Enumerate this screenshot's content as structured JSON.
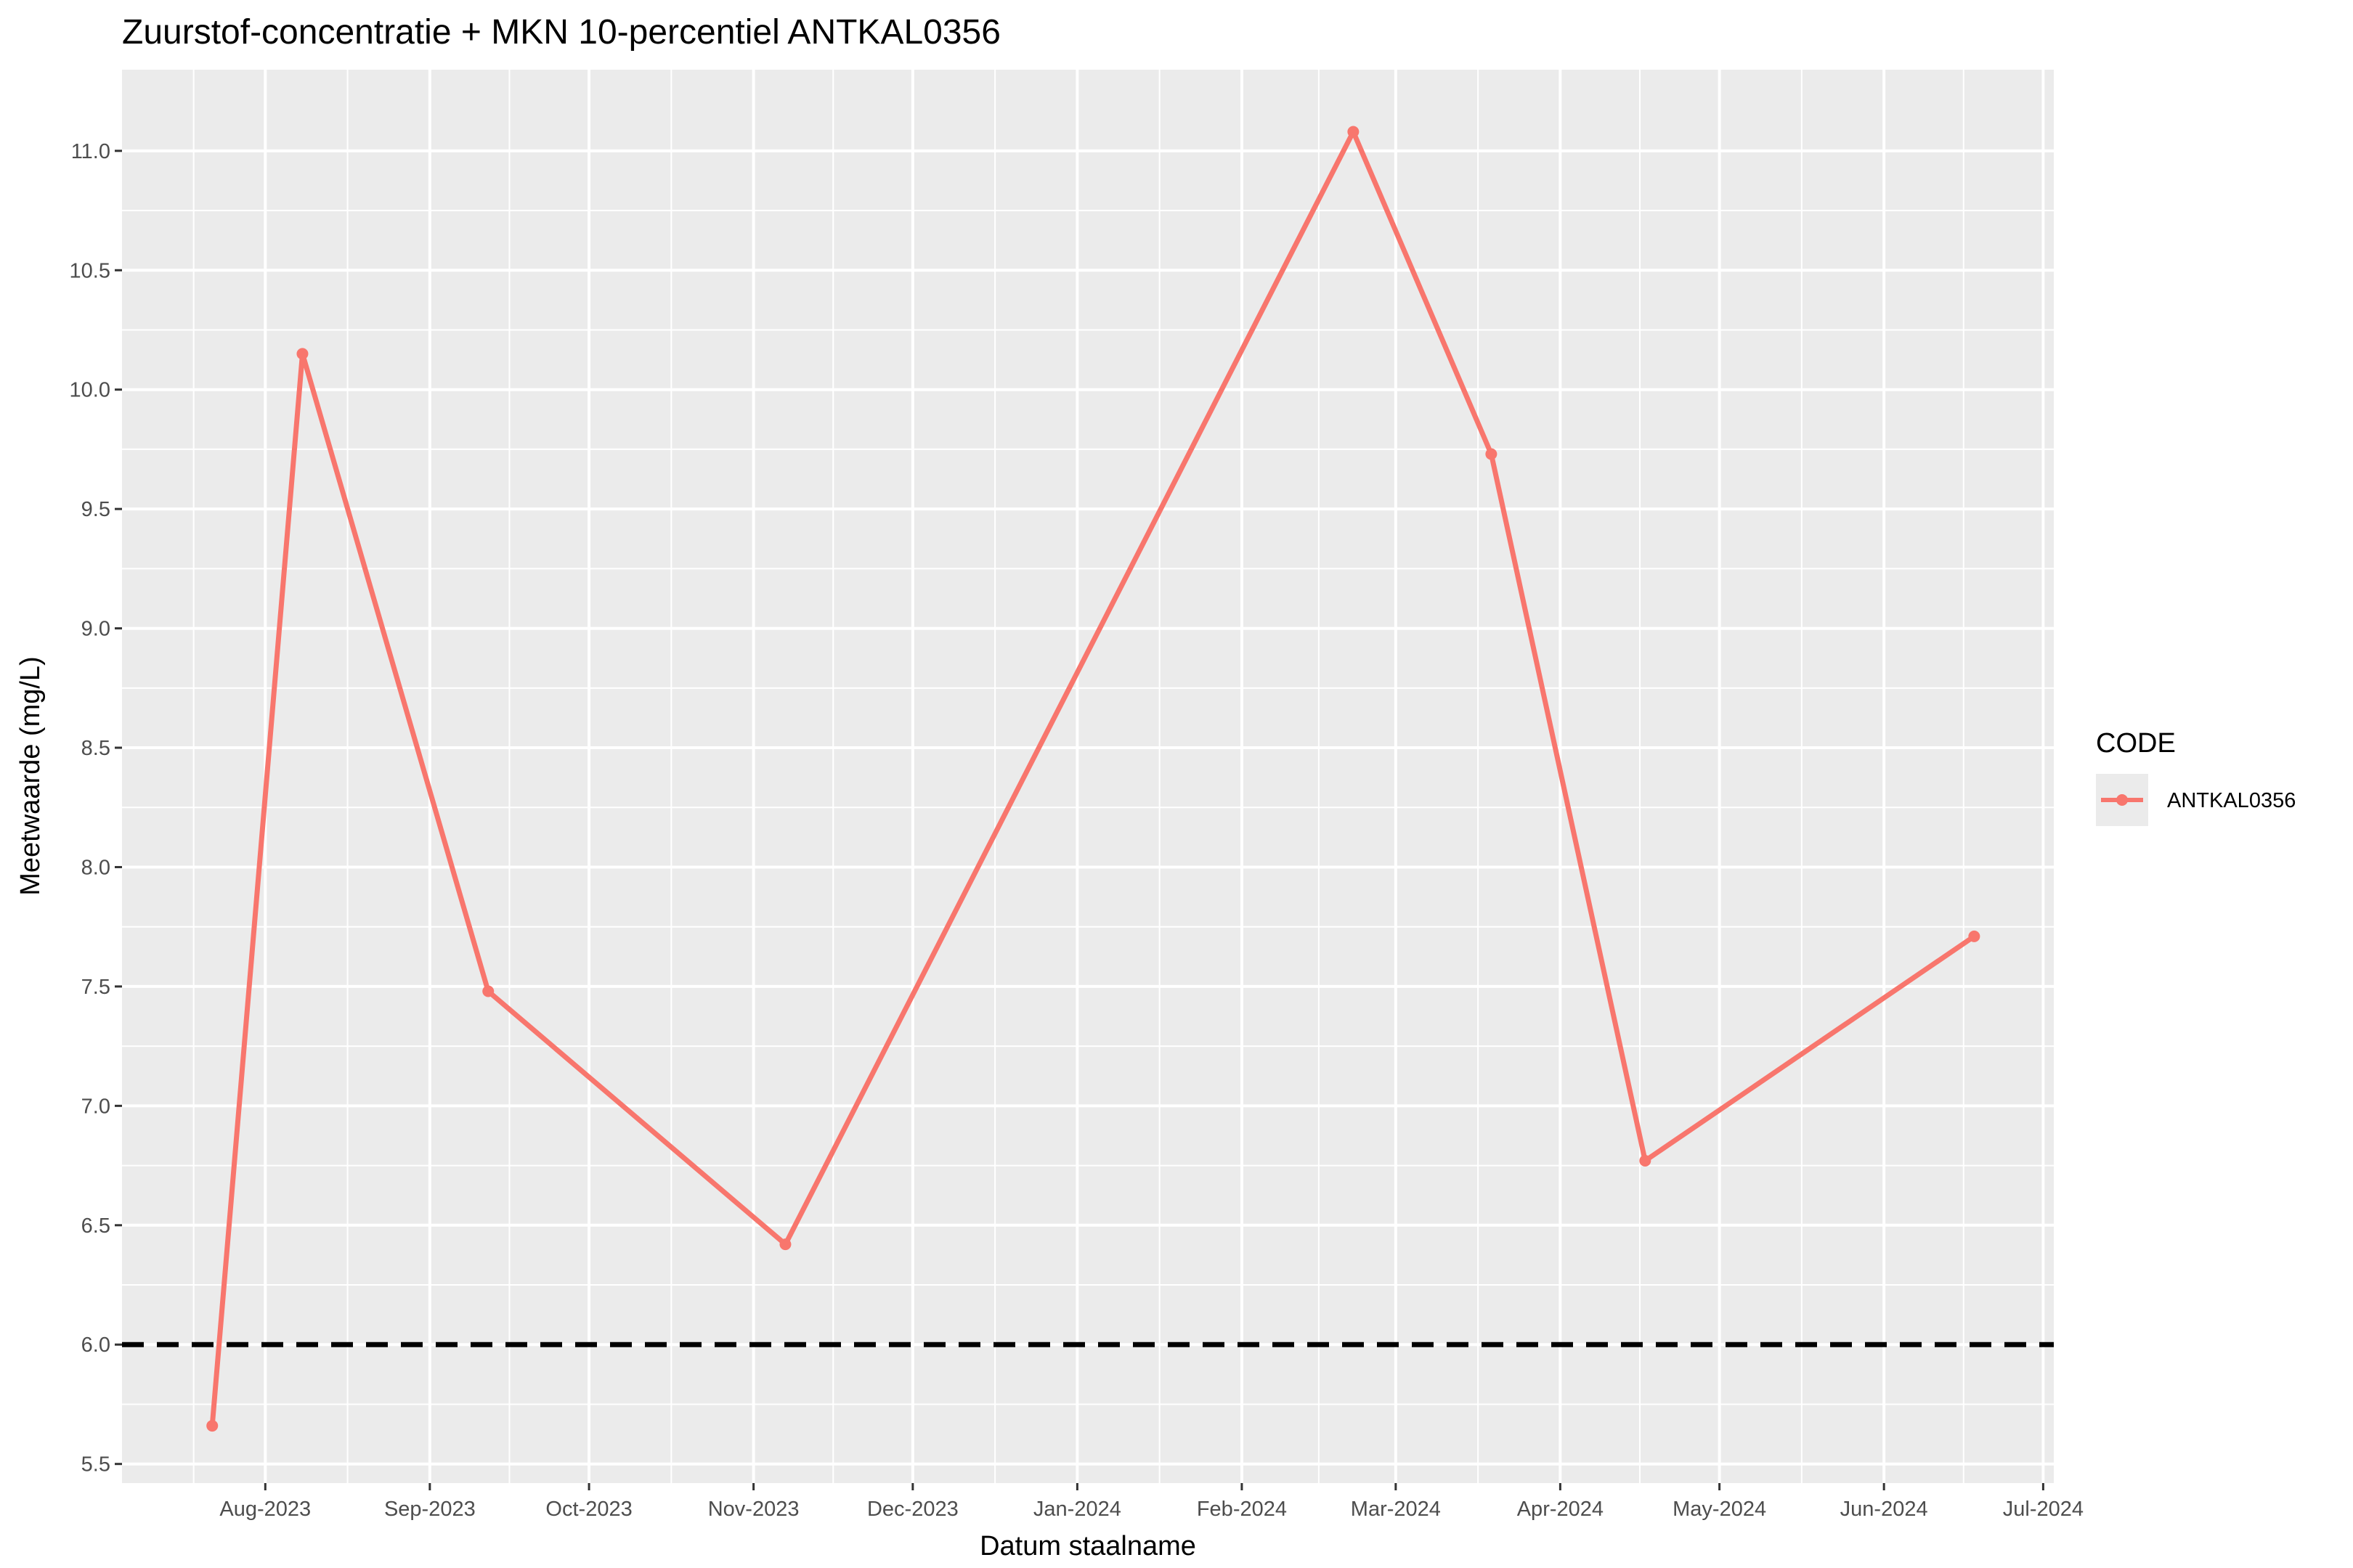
{
  "chart_data": {
    "type": "line",
    "title": "Zuurstof-concentratie + MKN 10-percentiel ANTKAL0356",
    "xlabel": "Datum staalname",
    "ylabel": "Meetwaarde (mg/L)",
    "x_tick_labels": [
      "Aug-2023",
      "Sep-2023",
      "Oct-2023",
      "Nov-2023",
      "Dec-2023",
      "Jan-2024",
      "Feb-2024",
      "Mar-2024",
      "Apr-2024",
      "May-2024",
      "Jun-2024",
      "Jul-2024"
    ],
    "x_ticks": [
      "2023-08-01",
      "2023-09-01",
      "2023-10-01",
      "2023-11-01",
      "2023-12-01",
      "2024-01-01",
      "2024-02-01",
      "2024-03-01",
      "2024-04-01",
      "2024-05-01",
      "2024-06-01",
      "2024-07-01"
    ],
    "xlim": [
      "2023-07-05",
      "2024-07-03"
    ],
    "y_ticks": [
      "5.5",
      "6.0",
      "6.5",
      "7.0",
      "7.5",
      "8.0",
      "8.5",
      "9.0",
      "9.5",
      "10.0",
      "10.5",
      "11.0"
    ],
    "ylim": [
      5.42,
      11.34
    ],
    "grid": true,
    "legend": {
      "title": "CODE",
      "position": "right"
    },
    "series": [
      {
        "name": "ANTKAL0356",
        "color": "#F8766D",
        "points": [
          {
            "x": "2023-07-22",
            "y": 5.66
          },
          {
            "x": "2023-08-08",
            "y": 10.15
          },
          {
            "x": "2023-09-12",
            "y": 7.48
          },
          {
            "x": "2023-11-07",
            "y": 6.42
          },
          {
            "x": "2024-02-22",
            "y": 11.08
          },
          {
            "x": "2024-03-19",
            "y": 9.73
          },
          {
            "x": "2024-04-17",
            "y": 6.77
          },
          {
            "x": "2024-06-18",
            "y": 7.71
          }
        ]
      }
    ],
    "reference_line": {
      "y": 6.0,
      "style": "dashed",
      "color": "#000000"
    }
  }
}
